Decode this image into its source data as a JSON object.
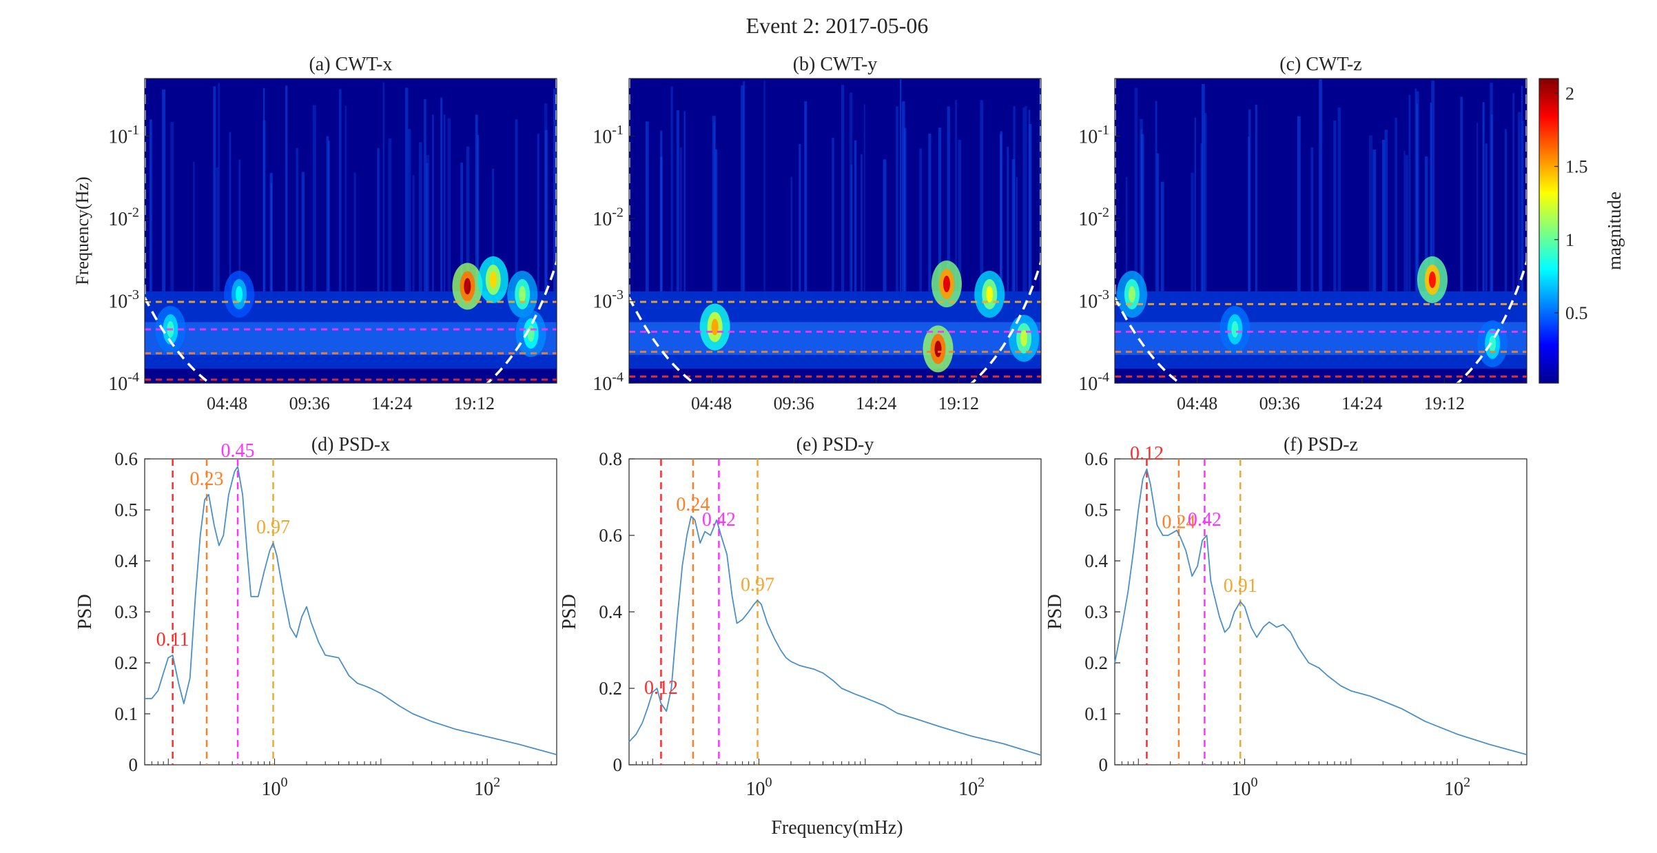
{
  "figure": {
    "title": "Event 2: 2017-05-06",
    "shared_xlabel": "Frequency(mHz)"
  },
  "colorbar": {
    "label": "magnitude",
    "ticks": [
      "0.5",
      "1",
      "1.5",
      "2"
    ],
    "tick_values": [
      0.5,
      1,
      1.5,
      2
    ],
    "range": [
      0.02,
      2.1
    ],
    "colormap": "jet"
  },
  "colors": {
    "psd_line": "#4a90c8",
    "red": "#ff2a2a",
    "orange": "#ff7f27",
    "magenta": "#ff33ff",
    "gold": "#f0a830",
    "coi": "#ffffff"
  },
  "chart_data": [
    {
      "type": "heatmap",
      "title": "(a) CWT-x",
      "ylabel": "Frequency(Hz)",
      "yscale": "log",
      "ylim": [
        0.0001,
        0.5
      ],
      "y_ticks": [
        "10^-4",
        "10^-3",
        "10^-2",
        "10^-1"
      ],
      "x_ticks": [
        "04:48",
        "09:36",
        "14:24",
        "19:12"
      ],
      "x_tick_hours": [
        4.8,
        9.6,
        14.4,
        19.2
      ],
      "xlim_hours": [
        0,
        24
      ],
      "dashed_lines_hz": [
        0.00011,
        0.00023,
        0.00045,
        0.00097
      ],
      "hotspots": [
        {
          "t": 18.8,
          "f": 0.0015,
          "mag": 2.0
        },
        {
          "t": 20.3,
          "f": 0.0018,
          "mag": 1.4
        },
        {
          "t": 22.0,
          "f": 0.0012,
          "mag": 1.1
        },
        {
          "t": 22.5,
          "f": 0.0004,
          "mag": 1.0
        },
        {
          "t": 1.5,
          "f": 0.00045,
          "mag": 0.9
        },
        {
          "t": 5.5,
          "f": 0.0012,
          "mag": 0.8
        }
      ]
    },
    {
      "type": "heatmap",
      "title": "(b) CWT-y",
      "ylabel": "",
      "yscale": "log",
      "ylim": [
        0.0001,
        0.5
      ],
      "y_ticks": [
        "10^-4",
        "10^-3",
        "10^-2",
        "10^-1"
      ],
      "x_ticks": [
        "04:48",
        "09:36",
        "14:24",
        "19:12"
      ],
      "x_tick_hours": [
        4.8,
        9.6,
        14.4,
        19.2
      ],
      "xlim_hours": [
        0,
        24
      ],
      "dashed_lines_hz": [
        0.00012,
        0.00024,
        0.00042,
        0.00097
      ],
      "hotspots": [
        {
          "t": 18.5,
          "f": 0.0016,
          "mag": 1.9
        },
        {
          "t": 18.0,
          "f": 0.00026,
          "mag": 2.0
        },
        {
          "t": 5.0,
          "f": 0.00048,
          "mag": 1.5
        },
        {
          "t": 21.0,
          "f": 0.0012,
          "mag": 1.3
        },
        {
          "t": 23.0,
          "f": 0.00035,
          "mag": 1.2
        }
      ]
    },
    {
      "type": "heatmap",
      "title": "(c) CWT-z",
      "ylabel": "",
      "yscale": "log",
      "ylim": [
        0.0001,
        0.5
      ],
      "y_ticks": [
        "10^-4",
        "10^-3",
        "10^-2",
        "10^-1"
      ],
      "x_ticks": [
        "04:48",
        "09:36",
        "14:24",
        "19:12"
      ],
      "x_tick_hours": [
        4.8,
        9.6,
        14.4,
        19.2
      ],
      "xlim_hours": [
        0,
        24
      ],
      "dashed_lines_hz": [
        0.00012,
        0.00024,
        0.00042,
        0.00091
      ],
      "hotspots": [
        {
          "t": 18.5,
          "f": 0.0018,
          "mag": 1.8
        },
        {
          "t": 1.0,
          "f": 0.0012,
          "mag": 1.1
        },
        {
          "t": 7.0,
          "f": 0.00045,
          "mag": 0.9
        },
        {
          "t": 22.0,
          "f": 0.0003,
          "mag": 0.9
        }
      ]
    },
    {
      "type": "line",
      "title": "(d) PSD-x",
      "ylabel": "PSD",
      "xscale": "log",
      "xlim": [
        0.06,
        450
      ],
      "ylim": [
        0,
        0.6
      ],
      "y_ticks": [
        "0",
        "0.1",
        "0.2",
        "0.3",
        "0.4",
        "0.5",
        "0.6"
      ],
      "y_tick_values": [
        0,
        0.1,
        0.2,
        0.3,
        0.4,
        0.5,
        0.6
      ],
      "x_ticks": [
        "10^0",
        "10^2"
      ],
      "peaks": [
        {
          "f": 0.11,
          "label": "0.11",
          "color": "red"
        },
        {
          "f": 0.23,
          "label": "0.23",
          "color": "orange"
        },
        {
          "f": 0.45,
          "label": "0.45",
          "color": "magenta"
        },
        {
          "f": 0.97,
          "label": "0.97",
          "color": "gold"
        }
      ],
      "series": [
        {
          "x": [
            0.06,
            0.07,
            0.08,
            0.09,
            0.1,
            0.11,
            0.125,
            0.14,
            0.16,
            0.18,
            0.2,
            0.22,
            0.24,
            0.27,
            0.3,
            0.33,
            0.37,
            0.42,
            0.45,
            0.5,
            0.55,
            0.6,
            0.7,
            0.8,
            0.9,
            0.97,
            1.05,
            1.2,
            1.4,
            1.6,
            1.8,
            2.0,
            2.2,
            2.6,
            3,
            4,
            5,
            6,
            7,
            8,
            10,
            15,
            20,
            30,
            50,
            100,
            200,
            450
          ],
          "y": [
            0.13,
            0.13,
            0.145,
            0.18,
            0.21,
            0.215,
            0.16,
            0.12,
            0.17,
            0.33,
            0.45,
            0.52,
            0.53,
            0.47,
            0.43,
            0.45,
            0.53,
            0.575,
            0.585,
            0.53,
            0.42,
            0.33,
            0.33,
            0.38,
            0.42,
            0.435,
            0.41,
            0.34,
            0.27,
            0.25,
            0.29,
            0.31,
            0.28,
            0.24,
            0.215,
            0.21,
            0.175,
            0.16,
            0.155,
            0.15,
            0.14,
            0.115,
            0.1,
            0.085,
            0.07,
            0.055,
            0.04,
            0.02
          ]
        }
      ]
    },
    {
      "type": "line",
      "title": "(e) PSD-y",
      "ylabel": "PSD",
      "xscale": "log",
      "xlim": [
        0.06,
        450
      ],
      "ylim": [
        0,
        0.8
      ],
      "y_ticks": [
        "0",
        "0.2",
        "0.4",
        "0.6",
        "0.8"
      ],
      "y_tick_values": [
        0,
        0.2,
        0.4,
        0.6,
        0.8
      ],
      "x_ticks": [
        "10^0",
        "10^2"
      ],
      "xlabel": "Frequency(mHz)",
      "peaks": [
        {
          "f": 0.12,
          "label": "0.12",
          "color": "red"
        },
        {
          "f": 0.24,
          "label": "0.24",
          "color": "orange"
        },
        {
          "f": 0.42,
          "label": "0.42",
          "color": "magenta"
        },
        {
          "f": 0.97,
          "label": "0.97",
          "color": "gold"
        }
      ],
      "series": [
        {
          "x": [
            0.06,
            0.07,
            0.08,
            0.09,
            0.1,
            0.11,
            0.12,
            0.135,
            0.15,
            0.17,
            0.19,
            0.21,
            0.23,
            0.25,
            0.28,
            0.31,
            0.35,
            0.4,
            0.44,
            0.5,
            0.56,
            0.62,
            0.7,
            0.8,
            0.9,
            0.97,
            1.05,
            1.2,
            1.4,
            1.6,
            1.8,
            2.0,
            2.4,
            2.8,
            3.3,
            4,
            5,
            6,
            8,
            10,
            15,
            20,
            30,
            50,
            100,
            200,
            450
          ],
          "y": [
            0.06,
            0.08,
            0.11,
            0.15,
            0.19,
            0.2,
            0.16,
            0.14,
            0.2,
            0.38,
            0.52,
            0.6,
            0.65,
            0.64,
            0.58,
            0.61,
            0.6,
            0.64,
            0.6,
            0.55,
            0.44,
            0.37,
            0.38,
            0.4,
            0.42,
            0.43,
            0.42,
            0.37,
            0.33,
            0.3,
            0.28,
            0.27,
            0.26,
            0.255,
            0.25,
            0.24,
            0.22,
            0.2,
            0.185,
            0.175,
            0.155,
            0.135,
            0.12,
            0.1,
            0.075,
            0.055,
            0.025
          ]
        }
      ]
    },
    {
      "type": "line",
      "title": "(f) PSD-z",
      "ylabel": "PSD",
      "xscale": "log",
      "xlim": [
        0.06,
        450
      ],
      "ylim": [
        0,
        0.6
      ],
      "y_ticks": [
        "0",
        "0.1",
        "0.2",
        "0.3",
        "0.4",
        "0.5",
        "0.6"
      ],
      "y_tick_values": [
        0,
        0.1,
        0.2,
        0.3,
        0.4,
        0.5,
        0.6
      ],
      "x_ticks": [
        "10^0",
        "10^2"
      ],
      "peaks": [
        {
          "f": 0.12,
          "label": "0.12",
          "color": "red"
        },
        {
          "f": 0.24,
          "label": "0.24",
          "color": "orange"
        },
        {
          "f": 0.42,
          "label": "0.42",
          "color": "magenta"
        },
        {
          "f": 0.91,
          "label": "0.91",
          "color": "gold"
        }
      ],
      "series": [
        {
          "x": [
            0.06,
            0.07,
            0.08,
            0.09,
            0.1,
            0.11,
            0.12,
            0.13,
            0.15,
            0.17,
            0.19,
            0.21,
            0.23,
            0.25,
            0.28,
            0.32,
            0.36,
            0.4,
            0.44,
            0.48,
            0.52,
            0.58,
            0.65,
            0.72,
            0.8,
            0.91,
            1.0,
            1.15,
            1.3,
            1.5,
            1.7,
            2.0,
            2.3,
            2.7,
            3.2,
            4,
            5,
            6,
            8,
            10,
            15,
            20,
            30,
            50,
            100,
            200,
            450
          ],
          "y": [
            0.2,
            0.27,
            0.34,
            0.42,
            0.5,
            0.56,
            0.58,
            0.55,
            0.47,
            0.45,
            0.45,
            0.455,
            0.46,
            0.445,
            0.42,
            0.37,
            0.39,
            0.44,
            0.45,
            0.36,
            0.33,
            0.29,
            0.26,
            0.27,
            0.3,
            0.32,
            0.31,
            0.27,
            0.25,
            0.27,
            0.28,
            0.27,
            0.275,
            0.26,
            0.23,
            0.2,
            0.19,
            0.175,
            0.155,
            0.145,
            0.135,
            0.125,
            0.11,
            0.085,
            0.06,
            0.04,
            0.02
          ]
        }
      ]
    }
  ]
}
